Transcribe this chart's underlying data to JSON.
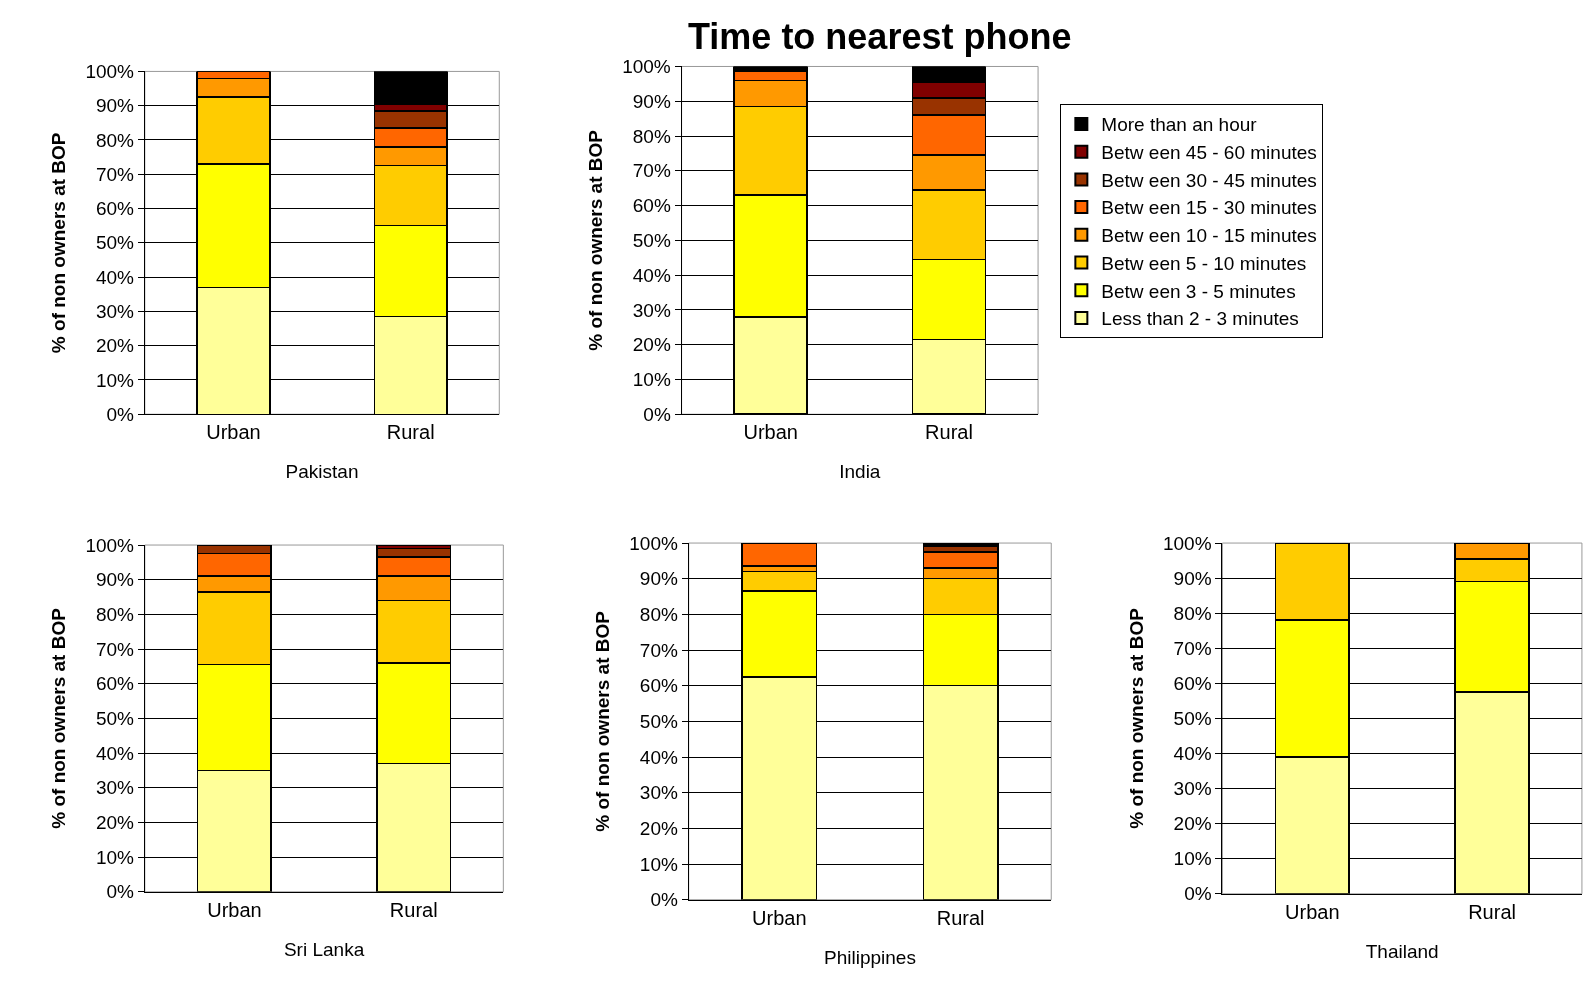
{
  "chart_data": [
    {
      "type": "bar",
      "stacked": true,
      "xlabel": "Pakistan",
      "ylabel": "% of non owners at BOP",
      "categories": [
        "Urban",
        "Rural"
      ],
      "ylim": [
        0,
        100
      ],
      "yticks": [
        {
          "value": 0,
          "label": "0%"
        },
        {
          "value": 10,
          "label": "10%"
        },
        {
          "value": 20,
          "label": "20%"
        },
        {
          "value": 30,
          "label": "30%"
        },
        {
          "value": 40,
          "label": "40%"
        },
        {
          "value": 50,
          "label": "50%"
        },
        {
          "value": 60,
          "label": "60%"
        },
        {
          "value": 70,
          "label": "70%"
        },
        {
          "value": 80,
          "label": "80%"
        },
        {
          "value": 90,
          "label": "90%"
        },
        {
          "value": 100,
          "label": "100%"
        }
      ],
      "grid": "y",
      "series": [
        {
          "color": "#ffff99",
          "values": [
            37,
            28.5
          ]
        },
        {
          "color": "#ffff00",
          "values": [
            36,
            26.5
          ]
        },
        {
          "color": "#ffcc00",
          "values": [
            19.5,
            17.5
          ]
        },
        {
          "color": "#ff9900",
          "values": [
            5.5,
            5.5
          ]
        },
        {
          "color": "#ff6600",
          "values": [
            2,
            5.5
          ]
        },
        {
          "color": "#993300",
          "values": [
            0,
            5
          ]
        },
        {
          "color": "#800000",
          "values": [
            0,
            2
          ]
        },
        {
          "color": "#000000",
          "values": [
            0,
            9.5
          ]
        }
      ]
    },
    {
      "type": "bar",
      "stacked": true,
      "title": "Time to nearest phone",
      "xlabel": "India",
      "ylabel": "% of non owners at BOP",
      "categories": [
        "Urban",
        "Rural"
      ],
      "ylim": [
        0,
        100
      ],
      "yticks": [
        {
          "value": 0,
          "label": "0%"
        },
        {
          "value": 10,
          "label": "10%"
        },
        {
          "value": 20,
          "label": "20%"
        },
        {
          "value": 30,
          "label": "30%"
        },
        {
          "value": 40,
          "label": "40%"
        },
        {
          "value": 50,
          "label": "50%"
        },
        {
          "value": 60,
          "label": "60%"
        },
        {
          "value": 70,
          "label": "70%"
        },
        {
          "value": 80,
          "label": "80%"
        },
        {
          "value": 90,
          "label": "90%"
        },
        {
          "value": 100,
          "label": "100%"
        }
      ],
      "grid": "y",
      "legend": "right",
      "series": [
        {
          "name": "Less than 2 - 3 minutes",
          "color": "#ffff99",
          "values": [
            28,
            21.5
          ]
        },
        {
          "name": "Betw een 3 - 5 minutes",
          "color": "#ffff00",
          "values": [
            35,
            23
          ]
        },
        {
          "name": "Betw een 5 - 10 minutes",
          "color": "#ffcc00",
          "values": [
            25.5,
            20
          ]
        },
        {
          "name": "Betw een 10 - 15 minutes",
          "color": "#ff9900",
          "values": [
            7.5,
            10
          ]
        },
        {
          "name": "Betw een 15 - 30 minutes",
          "color": "#ff6600",
          "values": [
            2.5,
            11.5
          ]
        },
        {
          "name": "Betw een 30 - 45 minutes",
          "color": "#993300",
          "values": [
            0,
            5
          ]
        },
        {
          "name": "Betw een 45 - 60 minutes",
          "color": "#800000",
          "values": [
            0,
            4.5
          ]
        },
        {
          "name": "More than an hour",
          "color": "#000000",
          "values": [
            1.5,
            4.5
          ]
        }
      ]
    },
    {
      "type": "bar",
      "stacked": true,
      "xlabel": "Sri Lanka",
      "ylabel": "% of non owners at BOP",
      "categories": [
        "Urban",
        "Rural"
      ],
      "ylim": [
        0,
        100
      ],
      "yticks": [
        {
          "value": 0,
          "label": "0%"
        },
        {
          "value": 10,
          "label": "10%"
        },
        {
          "value": 20,
          "label": "20%"
        },
        {
          "value": 30,
          "label": "30%"
        },
        {
          "value": 40,
          "label": "40%"
        },
        {
          "value": 50,
          "label": "50%"
        },
        {
          "value": 60,
          "label": "60%"
        },
        {
          "value": 70,
          "label": "70%"
        },
        {
          "value": 80,
          "label": "80%"
        },
        {
          "value": 90,
          "label": "90%"
        },
        {
          "value": 100,
          "label": "100%"
        }
      ],
      "grid": "y",
      "series": [
        {
          "color": "#ffff99",
          "values": [
            35,
            37
          ]
        },
        {
          "color": "#ffff00",
          "values": [
            30.5,
            29
          ]
        },
        {
          "color": "#ffcc00",
          "values": [
            21,
            18
          ]
        },
        {
          "color": "#ff9900",
          "values": [
            4.5,
            7
          ]
        },
        {
          "color": "#ff6600",
          "values": [
            6.5,
            5.5
          ]
        },
        {
          "color": "#993300",
          "values": [
            2.5,
            2.5
          ]
        },
        {
          "color": "#800000",
          "values": [
            0,
            1
          ]
        },
        {
          "color": "#000000",
          "values": [
            0,
            0
          ]
        }
      ]
    },
    {
      "type": "bar",
      "stacked": true,
      "xlabel": "Philippines",
      "ylabel": "% of non owners at BOP",
      "categories": [
        "Urban",
        "Rural"
      ],
      "ylim": [
        0,
        100
      ],
      "yticks": [
        {
          "value": 0,
          "label": "0%"
        },
        {
          "value": 10,
          "label": "10%"
        },
        {
          "value": 20,
          "label": "20%"
        },
        {
          "value": 30,
          "label": "30%"
        },
        {
          "value": 40,
          "label": "40%"
        },
        {
          "value": 50,
          "label": "50%"
        },
        {
          "value": 60,
          "label": "60%"
        },
        {
          "value": 70,
          "label": "70%"
        },
        {
          "value": 80,
          "label": "80%"
        },
        {
          "value": 90,
          "label": "90%"
        },
        {
          "value": 100,
          "label": "100%"
        }
      ],
      "grid": "y",
      "series": [
        {
          "color": "#ffff99",
          "values": [
            62.5,
            60
          ]
        },
        {
          "color": "#ffff00",
          "values": [
            24,
            20
          ]
        },
        {
          "color": "#ffcc00",
          "values": [
            5.5,
            10
          ]
        },
        {
          "color": "#ff9900",
          "values": [
            1.5,
            3
          ]
        },
        {
          "color": "#ff6600",
          "values": [
            6.5,
            4.5
          ]
        },
        {
          "color": "#993300",
          "values": [
            0,
            1.5
          ]
        },
        {
          "color": "#800000",
          "values": [
            0,
            0
          ]
        },
        {
          "color": "#000000",
          "values": [
            0,
            1
          ]
        }
      ]
    },
    {
      "type": "bar",
      "stacked": true,
      "xlabel": "Thailand",
      "ylabel": "% of non owners at BOP",
      "categories": [
        "Urban",
        "Rural"
      ],
      "ylim": [
        0,
        100
      ],
      "yticks": [
        {
          "value": 0,
          "label": "0%"
        },
        {
          "value": 10,
          "label": "10%"
        },
        {
          "value": 20,
          "label": "20%"
        },
        {
          "value": 30,
          "label": "30%"
        },
        {
          "value": 40,
          "label": "40%"
        },
        {
          "value": 50,
          "label": "50%"
        },
        {
          "value": 60,
          "label": "60%"
        },
        {
          "value": 70,
          "label": "70%"
        },
        {
          "value": 80,
          "label": "80%"
        },
        {
          "value": 90,
          "label": "90%"
        },
        {
          "value": 100,
          "label": "100%"
        }
      ],
      "grid": "y",
      "series": [
        {
          "color": "#ffff99",
          "values": [
            39,
            57.5
          ]
        },
        {
          "color": "#ffff00",
          "values": [
            39,
            31.5
          ]
        },
        {
          "color": "#ffcc00",
          "values": [
            22,
            6.5
          ]
        },
        {
          "color": "#ff9900",
          "values": [
            0,
            4.5
          ]
        },
        {
          "color": "#ff6600",
          "values": [
            0,
            0
          ]
        },
        {
          "color": "#993300",
          "values": [
            0,
            0
          ]
        },
        {
          "color": "#800000",
          "values": [
            0,
            0
          ]
        },
        {
          "color": "#000000",
          "values": [
            0,
            0
          ]
        }
      ]
    }
  ]
}
